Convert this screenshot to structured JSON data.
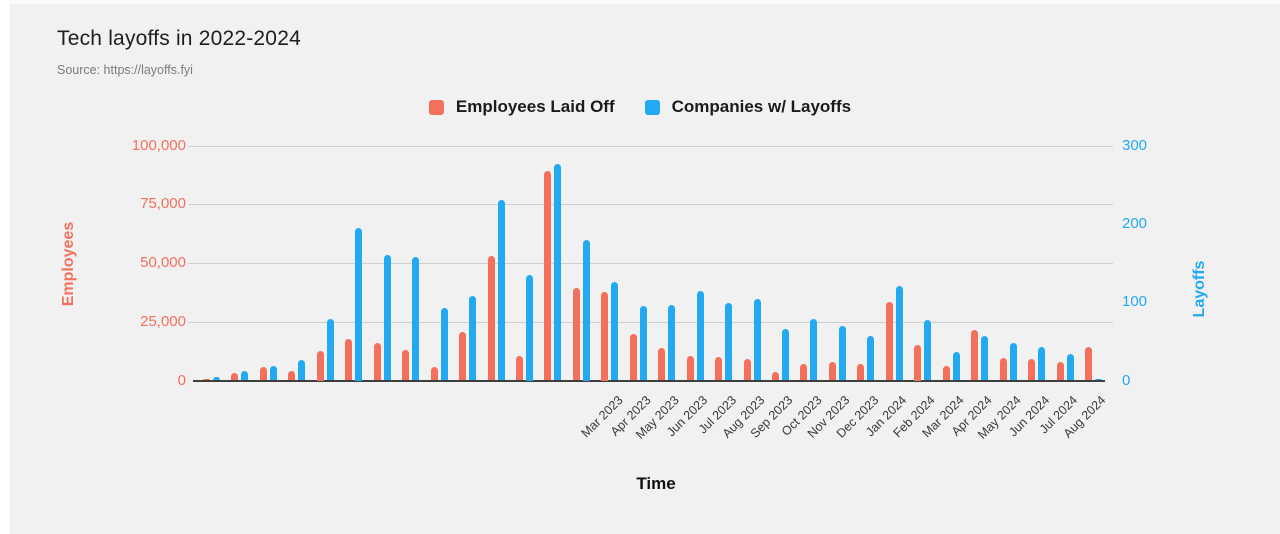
{
  "page": {
    "background": "#f1f1f2",
    "edge_strip_color": "#ffffff"
  },
  "header": {
    "title": "Tech layoffs in 2022-2024",
    "source": "Source: https://layoffs.fyi"
  },
  "chart_data": {
    "type": "bar",
    "title": "Tech layoffs in 2022-2024",
    "source": "Source: https://layoffs.fyi",
    "xlabel": "Time",
    "ylabel_left": "Employees",
    "ylabel_right": "Layoffs",
    "grid": true,
    "legend_position": "top-center",
    "y_left_range": [
      0,
      100000
    ],
    "y_left_ticks": [
      "100,000",
      "75,000",
      "50,000",
      "25,000",
      "0"
    ],
    "y_right_range": [
      0,
      300
    ],
    "y_right_ticks": [
      "300",
      "200",
      "100",
      "0"
    ],
    "num_month_pairs": 32,
    "unlabeled_leading_pairs": 14,
    "x_tick_labels": [
      "Mar 2023",
      "Apr 2023",
      "May 2023",
      "Jun 2023",
      "Jul 2023",
      "Aug 2023",
      "Sep 2023",
      "Oct 2023",
      "Nov 2023",
      "Dec 2023",
      "Jan 2024",
      "Feb 2024",
      "Mar 2024",
      "Apr 2024",
      "May 2024",
      "Jun 2024",
      "Jul 2024",
      "Aug 2024"
    ],
    "series": [
      {
        "name": "Employees Laid Off",
        "axis": "left",
        "color": "#f4705c",
        "values": [
          500,
          3100,
          5700,
          4000,
          12500,
          17800,
          16000,
          13000,
          5900,
          20700,
          53000,
          10500,
          89300,
          39500,
          37500,
          19800,
          14000,
          10500,
          9800,
          9000,
          3800,
          7000,
          7800,
          7200,
          33500,
          15000,
          6000,
          21500,
          9700,
          9200,
          7800,
          14300
        ]
      },
      {
        "name": "Companies w/ Layoffs",
        "axis": "right",
        "color": "#23a9f2",
        "values": [
          4,
          12,
          18,
          26,
          78,
          195,
          160,
          158,
          92,
          108,
          230,
          135,
          276,
          180,
          126,
          95,
          96,
          114,
          99,
          104,
          66,
          78,
          69,
          57,
          121,
          77,
          36,
          57,
          48,
          43,
          34,
          2
        ]
      }
    ],
    "axis_colors": {
      "left": "#f4705c",
      "right": "#23a9f2"
    }
  }
}
